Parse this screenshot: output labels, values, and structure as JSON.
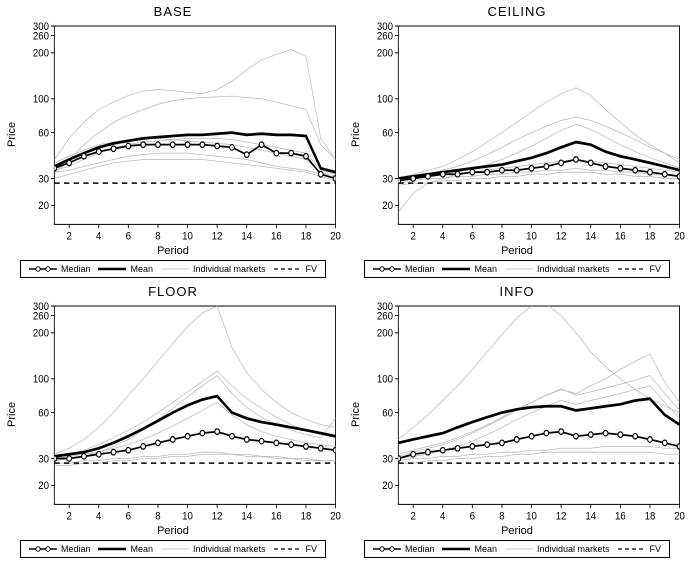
{
  "global": {
    "xlabel": "Period",
    "ylabel": "Price",
    "xlim": [
      1,
      20
    ],
    "ylim": [
      15,
      300
    ],
    "xticks": [
      2,
      4,
      6,
      8,
      10,
      12,
      14,
      16,
      18,
      20
    ],
    "yticks": [
      20,
      30,
      60,
      100,
      200,
      260,
      300
    ],
    "yscale": "log",
    "fv_value": 28,
    "background_color": "#ffffff",
    "axis_color": "#000000",
    "grid_color": "#e6e6e6",
    "tick_fontsize": 9,
    "label_fontsize": 11,
    "title_fontsize": 13,
    "colors": {
      "median": "#000000",
      "mean": "#000000",
      "individual": "#b8b8b8",
      "fv": "#000000"
    },
    "line_widths": {
      "median": 1.4,
      "mean": 2.2,
      "individual": 0.6,
      "fv": 1.2
    },
    "legend": {
      "median": "Median",
      "mean": "Mean",
      "individual": "Individual markets",
      "fv": "FV"
    }
  },
  "panels": [
    {
      "title": "BASE",
      "median": [
        35,
        38,
        42,
        45,
        47,
        49,
        50,
        50,
        50,
        50,
        50,
        49,
        48,
        43,
        50,
        44,
        44,
        42,
        32,
        30
      ],
      "mean": [
        36,
        40,
        44,
        48,
        51,
        53,
        55,
        56,
        57,
        58,
        58,
        59,
        60,
        58,
        59,
        58,
        58,
        57,
        35,
        33
      ],
      "individuals": [
        [
          40,
          55,
          70,
          85,
          95,
          105,
          112,
          115,
          113,
          110,
          108,
          115,
          130,
          155,
          180,
          195,
          210,
          190,
          55,
          40
        ],
        [
          32,
          40,
          50,
          60,
          70,
          78,
          85,
          92,
          97,
          100,
          102,
          103,
          104,
          102,
          100,
          95,
          90,
          85,
          50,
          40
        ],
        [
          34,
          36,
          40,
          44,
          48,
          50,
          52,
          53,
          54,
          55,
          55,
          55,
          54,
          52,
          50,
          48,
          46,
          44,
          34,
          32
        ],
        [
          33,
          34,
          36,
          38,
          40,
          42,
          43,
          44,
          44,
          44,
          43,
          42,
          41,
          40,
          38,
          36,
          35,
          34,
          32,
          30
        ],
        [
          30,
          32,
          34,
          36,
          38,
          39,
          40,
          40,
          40,
          40,
          40,
          39,
          38,
          37,
          36,
          35,
          34,
          33,
          31,
          29
        ],
        [
          38,
          42,
          46,
          50,
          52,
          54,
          55,
          55,
          54,
          53,
          52,
          51,
          50,
          48,
          46,
          44,
          42,
          40,
          33,
          31
        ]
      ]
    },
    {
      "title": "CEILING",
      "median": [
        29,
        30,
        31,
        32,
        32,
        33,
        33,
        34,
        34,
        35,
        36,
        38,
        40,
        38,
        36,
        35,
        34,
        33,
        32,
        31
      ],
      "mean": [
        30,
        31,
        32,
        33,
        34,
        35,
        36,
        37,
        39,
        41,
        44,
        48,
        52,
        50,
        45,
        42,
        40,
        38,
        36,
        34
      ],
      "individuals": [
        [
          18,
          24,
          28,
          30,
          32,
          33,
          34,
          35,
          36,
          37,
          38,
          39,
          40,
          39,
          38,
          37,
          36,
          35,
          34,
          33
        ],
        [
          30,
          32,
          34,
          36,
          40,
          45,
          52,
          60,
          70,
          82,
          95,
          108,
          118,
          105,
          85,
          70,
          58,
          50,
          44,
          38
        ],
        [
          28,
          29,
          30,
          30,
          31,
          31,
          32,
          32,
          33,
          33,
          34,
          34,
          35,
          34,
          34,
          33,
          33,
          32,
          32,
          31
        ],
        [
          30,
          31,
          32,
          34,
          36,
          39,
          43,
          48,
          54,
          60,
          66,
          72,
          76,
          72,
          66,
          60,
          54,
          48,
          44,
          40
        ],
        [
          27,
          28,
          28,
          29,
          29,
          30,
          30,
          31,
          31,
          32,
          32,
          33,
          33,
          33,
          32,
          32,
          31,
          31,
          30,
          30
        ],
        [
          29,
          30,
          31,
          32,
          33,
          35,
          37,
          40,
          44,
          49,
          55,
          62,
          68,
          63,
          56,
          50,
          45,
          41,
          38,
          35
        ]
      ]
    },
    {
      "title": "FLOOR",
      "median": [
        30,
        30,
        31,
        32,
        33,
        34,
        36,
        38,
        40,
        42,
        44,
        45,
        42,
        40,
        39,
        38,
        37,
        36,
        35,
        34
      ],
      "mean": [
        31,
        32,
        33,
        35,
        38,
        42,
        47,
        53,
        60,
        67,
        73,
        77,
        60,
        55,
        52,
        50,
        48,
        46,
        44,
        42
      ],
      "individuals": [
        [
          32,
          35,
          40,
          48,
          60,
          78,
          100,
          130,
          170,
          220,
          270,
          300,
          160,
          110,
          85,
          70,
          60,
          54,
          50,
          48
        ],
        [
          30,
          31,
          32,
          33,
          35,
          37,
          40,
          44,
          49,
          55,
          62,
          70,
          58,
          50,
          45,
          42,
          40,
          38,
          37,
          36
        ],
        [
          28,
          28,
          29,
          29,
          30,
          30,
          31,
          31,
          32,
          32,
          33,
          33,
          32,
          32,
          31,
          31,
          30,
          30,
          29,
          29
        ],
        [
          29,
          30,
          31,
          33,
          36,
          40,
          46,
          54,
          64,
          76,
          90,
          105,
          80,
          65,
          56,
          50,
          46,
          43,
          41,
          55
        ],
        [
          27,
          27,
          28,
          28,
          29,
          29,
          30,
          30,
          31,
          31,
          32,
          32,
          32,
          31,
          31,
          30,
          30,
          29,
          29,
          29
        ],
        [
          30,
          32,
          34,
          37,
          41,
          46,
          52,
          60,
          70,
          82,
          96,
          112,
          90,
          74,
          64,
          56,
          50,
          46,
          43,
          41
        ]
      ]
    },
    {
      "title": "INFO",
      "median": [
        30,
        32,
        33,
        34,
        35,
        36,
        37,
        38,
        40,
        42,
        44,
        45,
        42,
        43,
        44,
        43,
        42,
        40,
        38,
        36
      ],
      "mean": [
        38,
        40,
        42,
        44,
        48,
        52,
        56,
        60,
        63,
        65,
        66,
        66,
        62,
        64,
        66,
        68,
        72,
        74,
        58,
        50
      ],
      "individuals": [
        [
          40,
          48,
          58,
          72,
          90,
          115,
          150,
          195,
          250,
          300,
          310,
          260,
          200,
          150,
          120,
          100,
          85,
          74,
          66,
          60
        ],
        [
          32,
          34,
          36,
          38,
          41,
          45,
          50,
          56,
          63,
          70,
          78,
          85,
          80,
          90,
          100,
          115,
          130,
          145,
          95,
          70
        ],
        [
          29,
          30,
          30,
          31,
          31,
          32,
          32,
          33,
          33,
          34,
          34,
          35,
          35,
          35,
          36,
          36,
          36,
          36,
          35,
          35
        ],
        [
          30,
          31,
          32,
          34,
          36,
          39,
          43,
          48,
          54,
          60,
          66,
          72,
          68,
          72,
          76,
          80,
          85,
          90,
          70,
          55
        ],
        [
          28,
          28,
          29,
          29,
          30,
          30,
          31,
          31,
          32,
          32,
          33,
          33,
          33,
          33,
          33,
          33,
          33,
          33,
          32,
          32
        ],
        [
          31,
          33,
          35,
          37,
          40,
          44,
          49,
          55,
          62,
          70,
          78,
          86,
          78,
          82,
          87,
          92,
          98,
          105,
          80,
          62
        ]
      ]
    }
  ]
}
